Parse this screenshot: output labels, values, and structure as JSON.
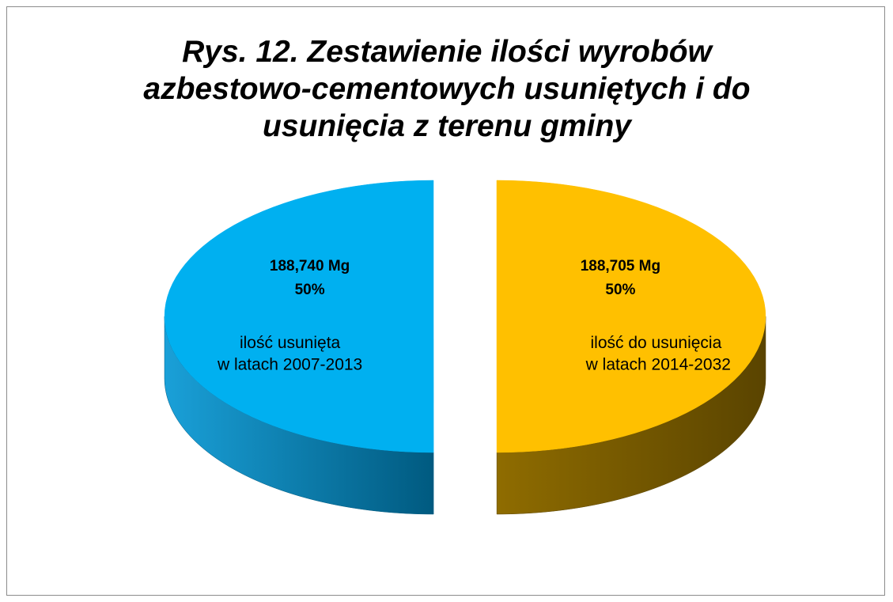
{
  "chart_data": {
    "type": "pie3d",
    "title": "Rys. 12. Zestawienie ilości wyrobów azbestowo-cementowych usuniętych i do usunięcia z terenu gminy",
    "categories": [
      "ilość usunięta\nw latach 2007-2013",
      "ilość do usunięcia\n w latach 2014-2032"
    ],
    "values": [
      188.74,
      188.705
    ],
    "value_labels": [
      "188,740 Mg",
      "188,705 Mg"
    ],
    "percents": [
      50,
      50
    ],
    "percent_labels": [
      "50%",
      "50%"
    ],
    "colors": [
      "#00b0f0",
      "#ffc000"
    ],
    "side_colors": [
      [
        "#1aa0d8",
        "#005a80"
      ],
      [
        "#8f6c00",
        "#5a4400"
      ]
    ]
  }
}
